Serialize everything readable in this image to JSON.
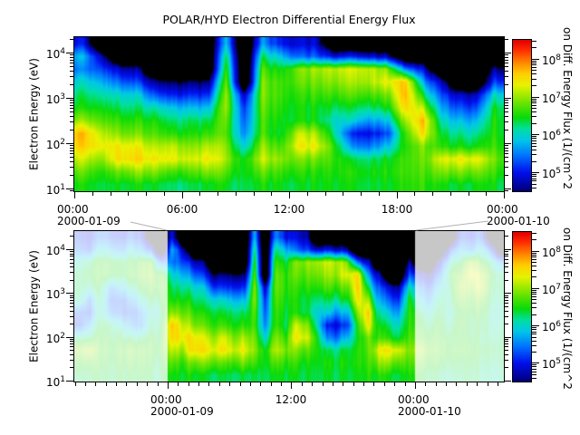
{
  "chart_data": {
    "type": "heatmap",
    "subtype": "time-energy spectrogram",
    "title": "POLAR/HYD  Electron Differential Energy Flux",
    "ylabel": "Electron Energy (eV)",
    "colorbar_label": "on Diff. Energy Flux (1/(cm^2",
    "y_scale": "log",
    "y_tick_exponents": [
      4,
      3,
      2,
      1
    ],
    "y_range_log10": [
      0.95,
      4.35
    ],
    "colorbar": {
      "tick_exponents": [
        8,
        7,
        6,
        5
      ],
      "range_log10": [
        4.5,
        8.5
      ],
      "colormap_stops": [
        [
          4.35,
          "#000000"
        ],
        [
          4.55,
          "#000086"
        ],
        [
          5.0,
          "#0010ee"
        ],
        [
          5.45,
          "#0076ff"
        ],
        [
          5.85,
          "#00c8e8"
        ],
        [
          6.15,
          "#00dfa0"
        ],
        [
          6.45,
          "#09db09"
        ],
        [
          6.9,
          "#7ee600"
        ],
        [
          7.3,
          "#e8f300"
        ],
        [
          7.6,
          "#ffd000"
        ],
        [
          7.95,
          "#ff7a00"
        ],
        [
          8.25,
          "#ff2600"
        ],
        [
          8.5,
          "#df0000"
        ]
      ],
      "below_scale_color": "#000000"
    },
    "panels": [
      {
        "id": "detail",
        "time_range_hours": [
          0,
          24
        ],
        "x_major_ticks": [
          {
            "h": 0,
            "time": "00:00",
            "date": "2000-01-09"
          },
          {
            "h": 6,
            "time": "06:00"
          },
          {
            "h": 12,
            "time": "12:00"
          },
          {
            "h": 18,
            "time": "18:00"
          },
          {
            "h": 24,
            "time": "00:00",
            "date": "2000-01-10"
          }
        ],
        "x_minor_tick_hours": 1,
        "grid_log10_flux": {
          "cols": 24,
          "rows": 12,
          "start_h": 0,
          "col_width_h": 1,
          "no_data_value": 0,
          "values": [
            [
              5.0,
              0,
              0,
              0,
              0,
              0,
              0,
              0,
              5.8,
              0,
              5.5,
              5.0,
              4.9,
              4.8,
              0,
              0,
              0,
              0,
              0,
              0,
              0,
              0,
              0,
              0
            ],
            [
              5.8,
              4.8,
              0,
              0,
              0,
              0,
              0,
              0,
              6.3,
              0,
              6.2,
              5.8,
              5.4,
              5.3,
              4.9,
              5.0,
              4.8,
              4.7,
              0,
              0,
              0,
              0,
              0,
              0
            ],
            [
              5.5,
              5.3,
              4.8,
              4.6,
              0,
              0,
              0,
              0,
              6.6,
              0,
              6.6,
              6.4,
              6.9,
              7.0,
              7.1,
              7.2,
              7.1,
              6.9,
              5.5,
              4.8,
              0,
              0,
              0,
              4.6
            ],
            [
              6.0,
              5.8,
              5.4,
              5.2,
              4.5,
              4.5,
              4.5,
              4.4,
              6.8,
              0,
              6.8,
              6.6,
              6.8,
              6.8,
              6.9,
              7.0,
              7.0,
              7.3,
              7.6,
              5.6,
              4.7,
              0,
              0,
              5.2
            ],
            [
              6.3,
              6.2,
              6.0,
              5.9,
              5.2,
              5.1,
              5.1,
              5.0,
              7.0,
              4.8,
              6.8,
              6.6,
              6.6,
              6.6,
              6.6,
              6.7,
              6.6,
              6.8,
              7.7,
              6.3,
              5.2,
              4.8,
              4.7,
              6.0
            ],
            [
              6.5,
              6.5,
              6.3,
              6.2,
              6.0,
              5.9,
              5.8,
              5.7,
              7.0,
              5.2,
              6.7,
              6.5,
              6.5,
              6.4,
              6.3,
              6.3,
              6.2,
              6.4,
              7.5,
              7.0,
              5.6,
              5.3,
              5.2,
              6.4
            ],
            [
              7.0,
              6.8,
              6.6,
              6.5,
              6.4,
              6.3,
              6.3,
              6.2,
              6.8,
              5.4,
              6.6,
              6.4,
              6.5,
              6.4,
              6.0,
              5.9,
              5.6,
              5.8,
              7.0,
              7.6,
              6.0,
              5.8,
              5.7,
              6.5
            ],
            [
              7.7,
              7.2,
              6.9,
              6.8,
              6.6,
              6.6,
              6.5,
              6.5,
              6.7,
              5.6,
              6.6,
              6.3,
              7.2,
              7.0,
              6.2,
              5.0,
              4.9,
              5.2,
              6.6,
              7.4,
              6.3,
              6.2,
              6.1,
              6.5
            ],
            [
              7.6,
              7.4,
              7.4,
              7.3,
              7.0,
              7.2,
              6.9,
              7.0,
              6.9,
              6.0,
              6.9,
              6.6,
              7.4,
              7.3,
              6.6,
              5.5,
              5.4,
              5.8,
              6.5,
              6.8,
              6.5,
              6.5,
              6.4,
              6.6
            ],
            [
              7.2,
              7.0,
              7.5,
              7.5,
              7.3,
              7.4,
              7.2,
              7.3,
              7.0,
              6.5,
              7.1,
              6.9,
              6.9,
              6.8,
              6.6,
              6.3,
              6.2,
              6.4,
              6.6,
              6.7,
              7.2,
              7.4,
              7.3,
              6.8
            ],
            [
              6.8,
              6.6,
              6.8,
              6.9,
              6.8,
              6.7,
              6.7,
              6.8,
              6.7,
              6.5,
              6.7,
              6.6,
              6.6,
              6.5,
              6.5,
              6.5,
              6.4,
              6.5,
              6.6,
              6.6,
              6.8,
              6.9,
              6.8,
              6.6
            ],
            [
              6.5,
              6.4,
              6.4,
              6.4,
              6.3,
              6.3,
              6.3,
              6.3,
              6.4,
              6.4,
              6.4,
              6.4,
              6.4,
              6.4,
              6.4,
              6.4,
              6.3,
              6.4,
              6.5,
              6.5,
              6.4,
              6.4,
              6.4,
              6.4
            ]
          ]
        }
      },
      {
        "id": "context",
        "time_range_hours": [
          -9.05,
          32.62
        ],
        "highlight_hours": [
          0,
          24
        ],
        "wash_alpha": 0.78,
        "x_major_ticks": [
          {
            "h": 0,
            "time": "00:00",
            "date": "2000-01-09"
          },
          {
            "h": 12,
            "time": "12:00"
          },
          {
            "h": 24,
            "time": "00:00",
            "date": "2000-01-10"
          }
        ],
        "x_minor_tick_hours": 1,
        "left_grid_log10_flux": {
          "cols": 9,
          "rows": 12,
          "start_h": -9.05,
          "col_width_h": 1,
          "no_data_value": 0,
          "values": [
            [
              5.2,
              5.0,
              5.4,
              5.2,
              5.0,
              5.3,
              5.0,
              0,
              0
            ],
            [
              5.5,
              5.3,
              6.0,
              5.8,
              5.5,
              6.0,
              5.6,
              5.0,
              0
            ],
            [
              6.2,
              6.4,
              6.5,
              6.5,
              6.4,
              6.5,
              6.6,
              6.6,
              5.4
            ],
            [
              6.4,
              6.5,
              6.6,
              6.5,
              6.4,
              6.6,
              6.7,
              6.8,
              6.6
            ],
            [
              6.4,
              6.3,
              6.4,
              5.6,
              5.8,
              6.2,
              6.4,
              6.6,
              6.7
            ],
            [
              6.3,
              5.5,
              6.3,
              5.3,
              5.2,
              5.6,
              6.0,
              6.3,
              6.5
            ],
            [
              5.4,
              5.2,
              6.2,
              5.5,
              5.3,
              5.2,
              5.5,
              6.0,
              6.3
            ],
            [
              5.2,
              5.8,
              6.4,
              6.3,
              6.0,
              5.6,
              5.4,
              6.2,
              6.4
            ],
            [
              6.3,
              6.4,
              6.5,
              6.4,
              6.4,
              6.3,
              6.2,
              6.4,
              6.5
            ],
            [
              7.0,
              7.2,
              6.6,
              6.5,
              6.6,
              6.8,
              6.6,
              6.5,
              6.6
            ],
            [
              6.6,
              6.7,
              6.5,
              6.4,
              6.5,
              6.6,
              6.5,
              6.4,
              6.4
            ],
            [
              6.4,
              6.4,
              6.4,
              6.3,
              6.4,
              6.4,
              6.4,
              6.3,
              6.3
            ]
          ]
        },
        "right_grid_log10_flux": {
          "cols": 9,
          "rows": 12,
          "start_h": 23.95,
          "col_width_h": 1,
          "no_data_value": 0,
          "values": [
            [
              0,
              0,
              0,
              0,
              5.2,
              5.0,
              5.3,
              0,
              0
            ],
            [
              0,
              0,
              0,
              5.2,
              5.8,
              5.5,
              6.0,
              5.2,
              0
            ],
            [
              0,
              0,
              4.9,
              6.2,
              6.4,
              7.0,
              6.6,
              6.2,
              5.6
            ],
            [
              4.8,
              4.7,
              5.5,
              6.6,
              6.8,
              7.3,
              7.1,
              6.5,
              6.2
            ],
            [
              5.4,
              5.3,
              6.0,
              6.4,
              7.0,
              6.9,
              7.2,
              6.4,
              6.3
            ],
            [
              5.8,
              5.7,
              6.3,
              6.3,
              6.8,
              6.6,
              6.8,
              6.3,
              6.2
            ],
            [
              6.2,
              6.1,
              6.4,
              6.2,
              6.5,
              6.4,
              6.5,
              6.2,
              6.1
            ],
            [
              6.4,
              6.4,
              6.5,
              6.3,
              6.6,
              6.3,
              6.4,
              6.2,
              6.2
            ],
            [
              6.6,
              6.6,
              6.6,
              6.5,
              6.5,
              6.4,
              6.3,
              6.3,
              6.3
            ],
            [
              7.0,
              6.8,
              6.7,
              6.6,
              6.6,
              6.5,
              6.4,
              6.4,
              6.4
            ],
            [
              6.7,
              6.6,
              6.5,
              6.5,
              6.4,
              6.4,
              6.3,
              6.3,
              6.3
            ],
            [
              6.4,
              6.4,
              6.3,
              6.3,
              6.3,
              6.3,
              6.2,
              6.2,
              6.2
            ]
          ]
        }
      }
    ]
  }
}
